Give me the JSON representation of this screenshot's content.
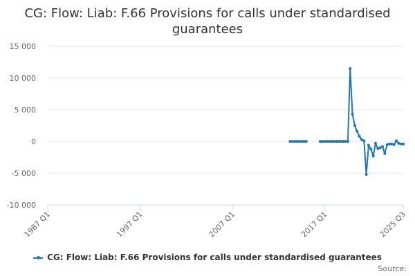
{
  "chart_data": {
    "type": "line",
    "title": "CG: Flow: Liab: F.66 Provisions for calls under standardised guarantees",
    "xlabel": "",
    "ylabel": "",
    "ylim": [
      -10000,
      15000
    ],
    "y_ticks": [
      "15 000",
      "10 000",
      "5 000",
      "0",
      "-5 000",
      "-10 000"
    ],
    "x_ticks": [
      "1987 Q1",
      "1997 Q1",
      "2007 Q1",
      "2017 Q1",
      "2025 Q3"
    ],
    "xlim": [
      "1987 Q1",
      "2025 Q3"
    ],
    "grid": "horizontal",
    "legend_position": "bottom",
    "series": [
      {
        "name": "CG: Flow: Liab: F.66 Provisions for calls under standardised guarantees",
        "color": "#1f77b4",
        "segments": [
          {
            "x": [
              "2013 Q2",
              "2013 Q3",
              "2013 Q4",
              "2014 Q1",
              "2014 Q2",
              "2014 Q3",
              "2014 Q4",
              "2015 Q1"
            ],
            "y": [
              0,
              0,
              0,
              0,
              0,
              0,
              0,
              0
            ]
          },
          {
            "x": [
              "2016 Q3",
              "2016 Q4",
              "2017 Q1",
              "2017 Q2",
              "2017 Q3",
              "2017 Q4",
              "2018 Q1",
              "2018 Q2",
              "2018 Q3",
              "2018 Q4",
              "2019 Q1",
              "2019 Q2",
              "2019 Q3",
              "2019 Q4",
              "2020 Q1",
              "2020 Q2",
              "2020 Q3",
              "2020 Q4",
              "2021 Q1",
              "2021 Q2",
              "2021 Q3",
              "2021 Q4",
              "2022 Q1",
              "2022 Q2",
              "2022 Q3",
              "2022 Q4",
              "2023 Q1",
              "2023 Q2",
              "2023 Q3",
              "2023 Q4",
              "2024 Q1",
              "2024 Q2",
              "2024 Q3",
              "2024 Q4",
              "2025 Q1",
              "2025 Q2",
              "2025 Q3"
            ],
            "y": [
              0,
              0,
              0,
              0,
              0,
              0,
              0,
              0,
              0,
              0,
              0,
              0,
              0,
              11500,
              4300,
              2500,
              1600,
              800,
              300,
              100,
              -5200,
              -600,
              -1200,
              -2300,
              -300,
              -1100,
              -1000,
              -800,
              -1900,
              -500,
              -400,
              -400,
              -500,
              100,
              -300,
              -400,
              -400
            ]
          }
        ]
      }
    ],
    "source_label": "Source:"
  }
}
